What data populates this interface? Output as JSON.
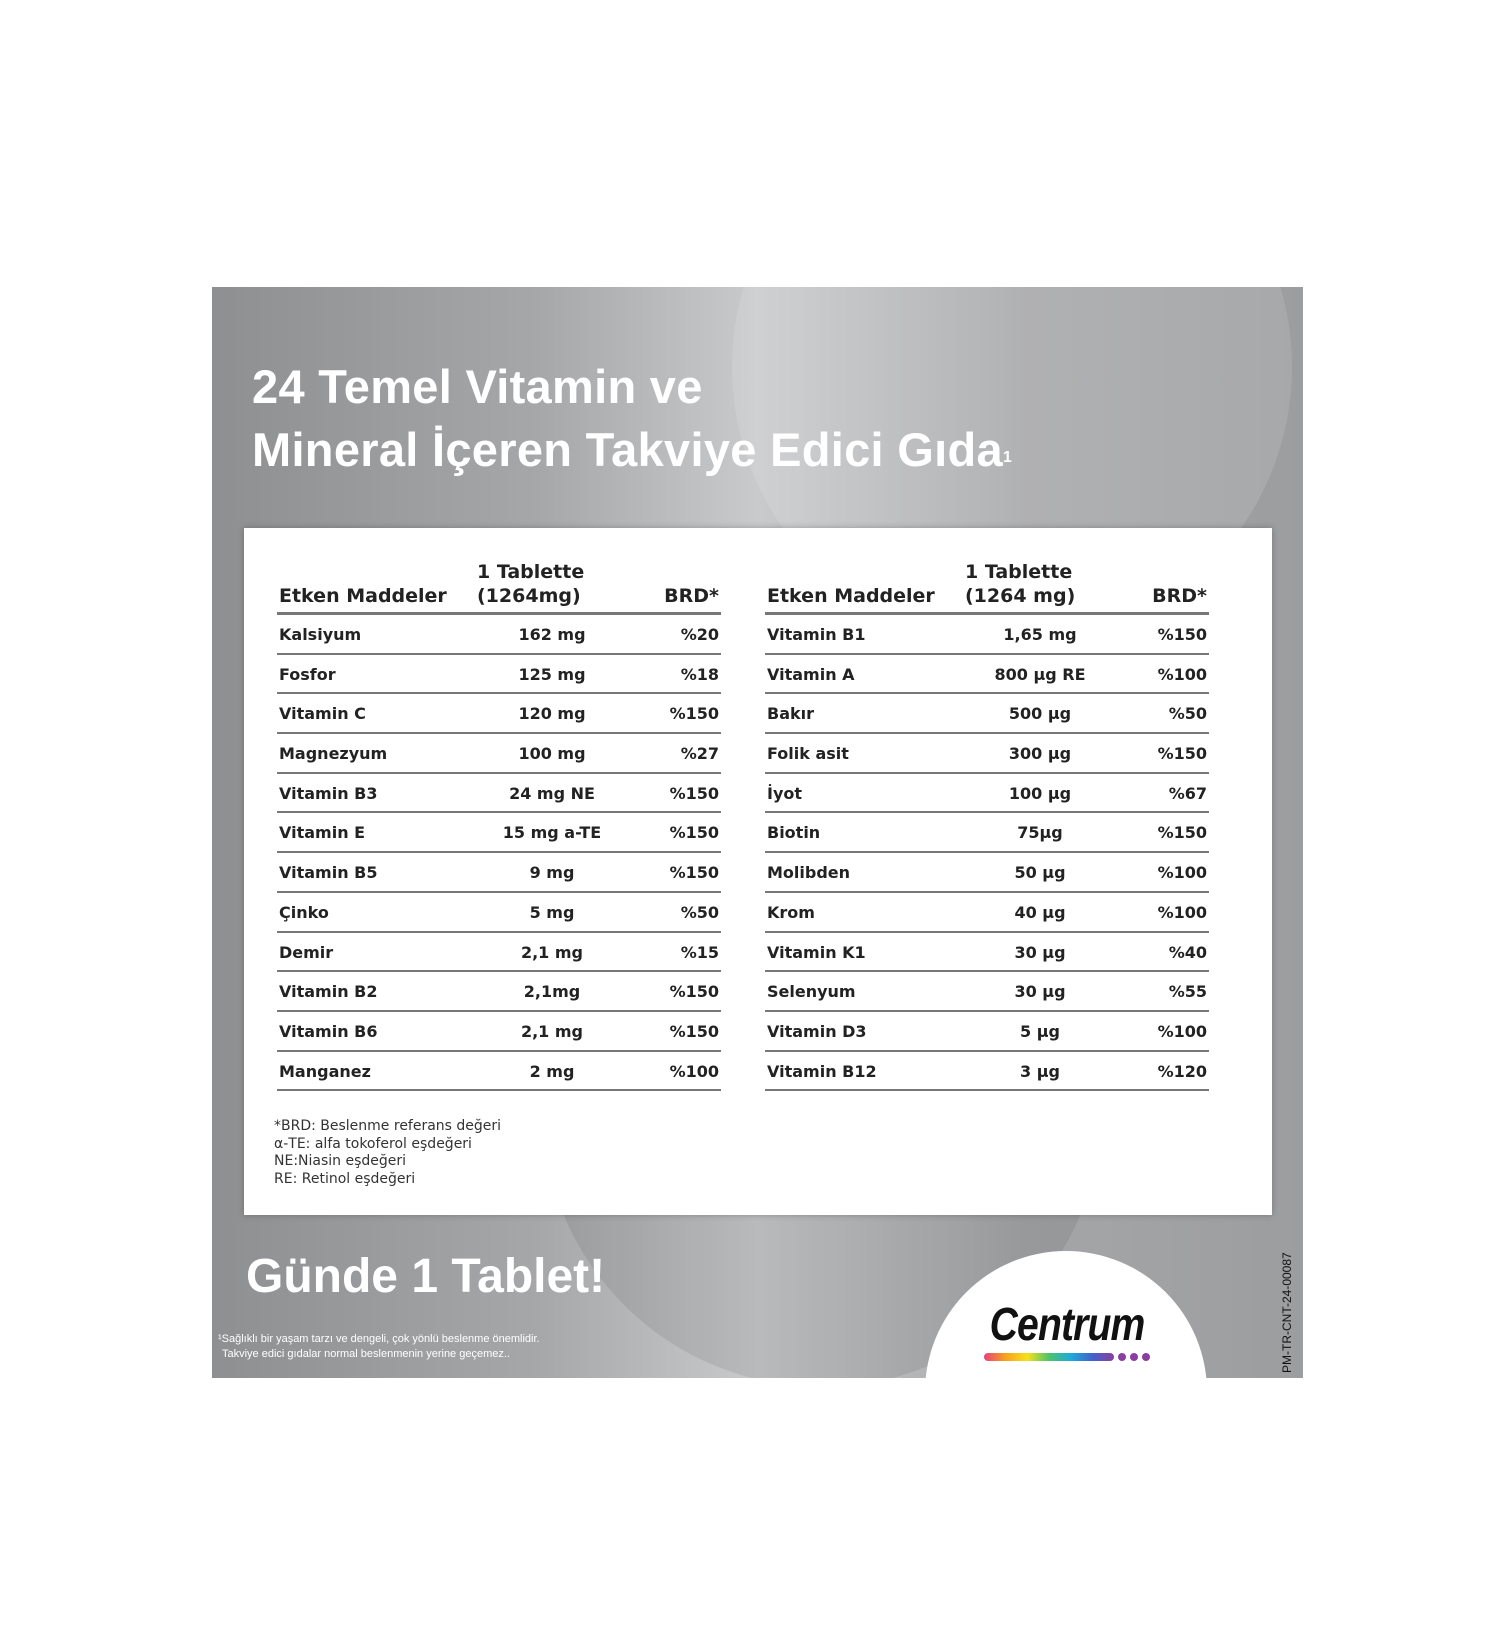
{
  "title": {
    "line1": "24 Temel Vitamin ve",
    "line2": "Mineral İçeren Takviye Edici Gıda",
    "sup": "1"
  },
  "left_table": {
    "headers": [
      "Etken Maddeler",
      "1 Tablette",
      "(1264mg)",
      "BRD*"
    ],
    "rows": [
      [
        "Kalsiyum",
        "162 mg",
        "%20"
      ],
      [
        "Fosfor",
        "125 mg",
        "%18"
      ],
      [
        "Vitamin C",
        "120 mg",
        "%150"
      ],
      [
        "Magnezyum",
        "100 mg",
        "%27"
      ],
      [
        "Vitamin B3",
        "24 mg NE",
        "%150"
      ],
      [
        "Vitamin E",
        "15 mg a-TE",
        "%150"
      ],
      [
        "Vitamin B5",
        "9 mg",
        "%150"
      ],
      [
        "Çinko",
        "5 mg",
        "%50"
      ],
      [
        "Demir",
        "2,1 mg",
        "%15"
      ],
      [
        "Vitamin B2",
        "2,1mg",
        "%150"
      ],
      [
        "Vitamin B6",
        "2,1 mg",
        "%150"
      ],
      [
        "Manganez",
        "2 mg",
        "%100"
      ]
    ]
  },
  "right_table": {
    "headers": [
      "Etken Maddeler",
      "1 Tablette",
      "(1264 mg)",
      "BRD*"
    ],
    "rows": [
      [
        "Vitamin B1",
        "1,65 mg",
        "%150"
      ],
      [
        "Vitamin A",
        "800 µg RE",
        "%100"
      ],
      [
        "Bakır",
        "500 µg",
        "%50"
      ],
      [
        "Folik asit",
        "300 µg",
        "%150"
      ],
      [
        "İyot",
        "100 µg",
        "%67"
      ],
      [
        "Biotin",
        "75µg",
        "%150"
      ],
      [
        "Molibden",
        "50 µg",
        "%100"
      ],
      [
        "Krom",
        "40 µg",
        "%100"
      ],
      [
        "Vitamin K1",
        "30 µg",
        "%40"
      ],
      [
        "Selenyum",
        "30 µg",
        "%55"
      ],
      [
        "Vitamin D3",
        "5 µg",
        "%100"
      ],
      [
        "Vitamin B12",
        "3 µg",
        "%120"
      ]
    ]
  },
  "notes": [
    "*BRD: Beslenme referans değeri",
    "α-TE: alfa tokoferol eşdeğeri",
    "NE:Niasin eşdeğeri",
    "RE: Retinol eşdeğeri"
  ],
  "slogan": "Günde 1 Tablet!",
  "disclaimer": [
    "¹Sağlıklı bir yaşam tarzı ve dengeli, çok yönlü beslenme önemlidir.",
    "Takviye edici gıdalar normal beslenmenin yerine geçemez.."
  ],
  "logo": "Centrum",
  "code": "PM-TR-CNT-24-00087",
  "colors": {
    "panel": "#a6a7a9",
    "text_white": "#ffffff",
    "rule": "#777777"
  }
}
